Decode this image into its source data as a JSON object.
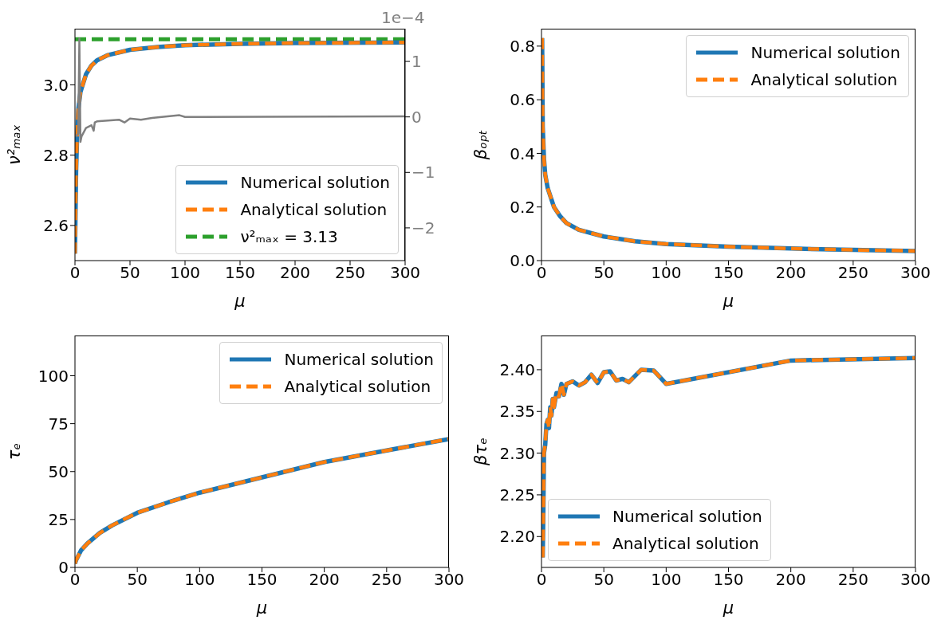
{
  "chart_data": [
    {
      "type": "line",
      "xlabel": "μ",
      "ylabel": "ν²ₘₐₓ",
      "xlim": [
        0,
        300
      ],
      "xticks": [
        0,
        50,
        100,
        150,
        200,
        250,
        300
      ],
      "ylim": [
        2.5,
        3.16
      ],
      "yticks": [
        2.6,
        2.8,
        {
          "value": 3,
          "label": "3.0"
        }
      ],
      "y2lim": [
        -2.59,
        1.59
      ],
      "y2ticks": [
        {
          "value": -2,
          "label": "−2"
        },
        {
          "value": -1,
          "label": "−1"
        },
        0,
        1
      ],
      "legend": "bottom right",
      "y2label": "1e−4",
      "ref_lines": [
        {
          "axis": "y",
          "value": 3.13,
          "label": "ν²ₘₐₓ = 3.13",
          "color": "#2ca02c",
          "line_style": "dashed"
        }
      ],
      "series": [
        {
          "name": "Numerical solution",
          "color": "#1f77b4",
          "line_style": "solid",
          "x": [
            0,
            1,
            2,
            3,
            5,
            10,
            15,
            20,
            30,
            50,
            75,
            100,
            150,
            200,
            300
          ],
          "values": [
            2.52,
            2.75,
            2.86,
            2.93,
            2.98,
            3.03,
            3.055,
            3.07,
            3.085,
            3.1,
            3.108,
            3.113,
            3.117,
            3.119,
            3.121
          ]
        },
        {
          "name": "Analytical solution",
          "color": "#ff7f0e",
          "line_style": "dashed",
          "x": [
            0,
            1,
            2,
            3,
            5,
            10,
            15,
            20,
            30,
            50,
            75,
            100,
            150,
            200,
            300
          ],
          "values": [
            2.52,
            2.75,
            2.86,
            2.93,
            2.98,
            3.03,
            3.055,
            3.07,
            3.085,
            3.1,
            3.108,
            3.113,
            3.117,
            3.119,
            3.121
          ]
        },
        {
          "color": "#808080",
          "line_style": "solid",
          "axis": "y2",
          "x": [
            1,
            3,
            4,
            5,
            6,
            10,
            15,
            17,
            18,
            20,
            40,
            45,
            50,
            60,
            70,
            95,
            100,
            300
          ],
          "values": [
            -0.35,
            -0.3,
            1.41,
            -0.45,
            -0.35,
            -0.2,
            -0.15,
            -0.25,
            -0.1,
            -0.08,
            -0.05,
            -0.1,
            -0.03,
            -0.05,
            -0.02,
            0.03,
            0,
            0.01
          ]
        }
      ]
    },
    {
      "type": "line",
      "xlabel": "μ",
      "ylabel": "βₒₚₜ",
      "xlim": [
        0,
        300
      ],
      "xticks": [
        0,
        50,
        100,
        150,
        200,
        250,
        300
      ],
      "ylim": [
        0,
        0.865
      ],
      "yticks": [
        {
          "value": 0,
          "label": "0.0"
        },
        0.2,
        0.4,
        0.6,
        0.8
      ],
      "legend": "top right",
      "series": [
        {
          "name": "Numerical solution",
          "color": "#1f77b4",
          "line_style": "solid",
          "x": [
            0.5,
            1,
            2,
            3,
            5,
            10,
            15,
            20,
            30,
            50,
            75,
            100,
            150,
            200,
            250,
            300
          ],
          "values": [
            0.83,
            0.5,
            0.38,
            0.32,
            0.27,
            0.2,
            0.165,
            0.14,
            0.115,
            0.09,
            0.072,
            0.062,
            0.052,
            0.045,
            0.04,
            0.036
          ]
        },
        {
          "name": "Analytical solution",
          "color": "#ff7f0e",
          "line_style": "dashed",
          "x": [
            0.5,
            1,
            2,
            3,
            5,
            10,
            15,
            20,
            30,
            50,
            75,
            100,
            150,
            200,
            250,
            300
          ],
          "values": [
            0.83,
            0.5,
            0.38,
            0.32,
            0.27,
            0.2,
            0.165,
            0.14,
            0.115,
            0.09,
            0.072,
            0.062,
            0.052,
            0.045,
            0.04,
            0.036
          ]
        }
      ]
    },
    {
      "type": "line",
      "xlabel": "μ",
      "ylabel": "τₑ",
      "xlim": [
        0,
        300
      ],
      "xticks": [
        0,
        50,
        100,
        150,
        200,
        250,
        300
      ],
      "ylim": [
        0,
        121
      ],
      "yticks": [
        0,
        25,
        50,
        75,
        100
      ],
      "legend": "top right",
      "series": [
        {
          "name": "Numerical solution",
          "color": "#1f77b4",
          "line_style": "solid",
          "x": [
            0,
            1,
            5,
            10,
            20,
            30,
            50,
            75,
            100,
            150,
            200,
            250,
            300
          ],
          "values": [
            2,
            4,
            9,
            12.5,
            18,
            22,
            28.5,
            34,
            39,
            47,
            55,
            61,
            67
          ]
        },
        {
          "name": "Analytical solution",
          "color": "#ff7f0e",
          "line_style": "dashed",
          "x": [
            0,
            1,
            5,
            10,
            20,
            30,
            50,
            75,
            100,
            150,
            200,
            250,
            300
          ],
          "values": [
            2,
            4,
            9,
            12.5,
            18,
            22,
            28.5,
            34,
            39,
            47,
            55,
            61,
            67
          ]
        }
      ]
    },
    {
      "type": "line",
      "xlabel": "μ",
      "ylabel": "βτₑ",
      "xlim": [
        0,
        300
      ],
      "xticks": [
        0,
        50,
        100,
        150,
        200,
        250,
        300
      ],
      "ylim": [
        2.163,
        2.441
      ],
      "yticks": [
        {
          "value": 2.2,
          "label": "2.20"
        },
        2.25,
        {
          "value": 2.3,
          "label": "2.30"
        },
        2.35,
        {
          "value": 2.4,
          "label": "2.40"
        }
      ],
      "legend": "bottom left",
      "series": [
        {
          "name": "Numerical solution",
          "color": "#1f77b4",
          "line_style": "solid",
          "x": [
            1,
            1.5,
            2,
            3,
            4,
            5,
            6,
            7,
            8,
            9,
            10,
            12,
            14,
            16,
            18,
            20,
            25,
            30,
            35,
            40,
            45,
            50,
            55,
            60,
            65,
            70,
            80,
            90,
            100,
            200,
            300
          ],
          "values": [
            2.175,
            2.23,
            2.3,
            2.31,
            2.335,
            2.34,
            2.33,
            2.355,
            2.345,
            2.365,
            2.355,
            2.372,
            2.368,
            2.383,
            2.37,
            2.383,
            2.386,
            2.381,
            2.385,
            2.394,
            2.384,
            2.397,
            2.398,
            2.387,
            2.389,
            2.385,
            2.4,
            2.399,
            2.383,
            2.411,
            2.414
          ]
        },
        {
          "name": "Analytical solution",
          "color": "#ff7f0e",
          "line_style": "dashed",
          "x": [
            1,
            1.5,
            2,
            3,
            4,
            5,
            6,
            7,
            8,
            9,
            10,
            12,
            14,
            16,
            18,
            20,
            25,
            30,
            35,
            40,
            45,
            50,
            55,
            60,
            65,
            70,
            80,
            90,
            100,
            200,
            300
          ],
          "values": [
            2.175,
            2.23,
            2.3,
            2.31,
            2.335,
            2.34,
            2.33,
            2.355,
            2.345,
            2.365,
            2.355,
            2.372,
            2.368,
            2.383,
            2.37,
            2.383,
            2.386,
            2.381,
            2.385,
            2.394,
            2.384,
            2.397,
            2.398,
            2.387,
            2.389,
            2.385,
            2.4,
            2.399,
            2.383,
            2.411,
            2.414
          ]
        }
      ]
    }
  ]
}
